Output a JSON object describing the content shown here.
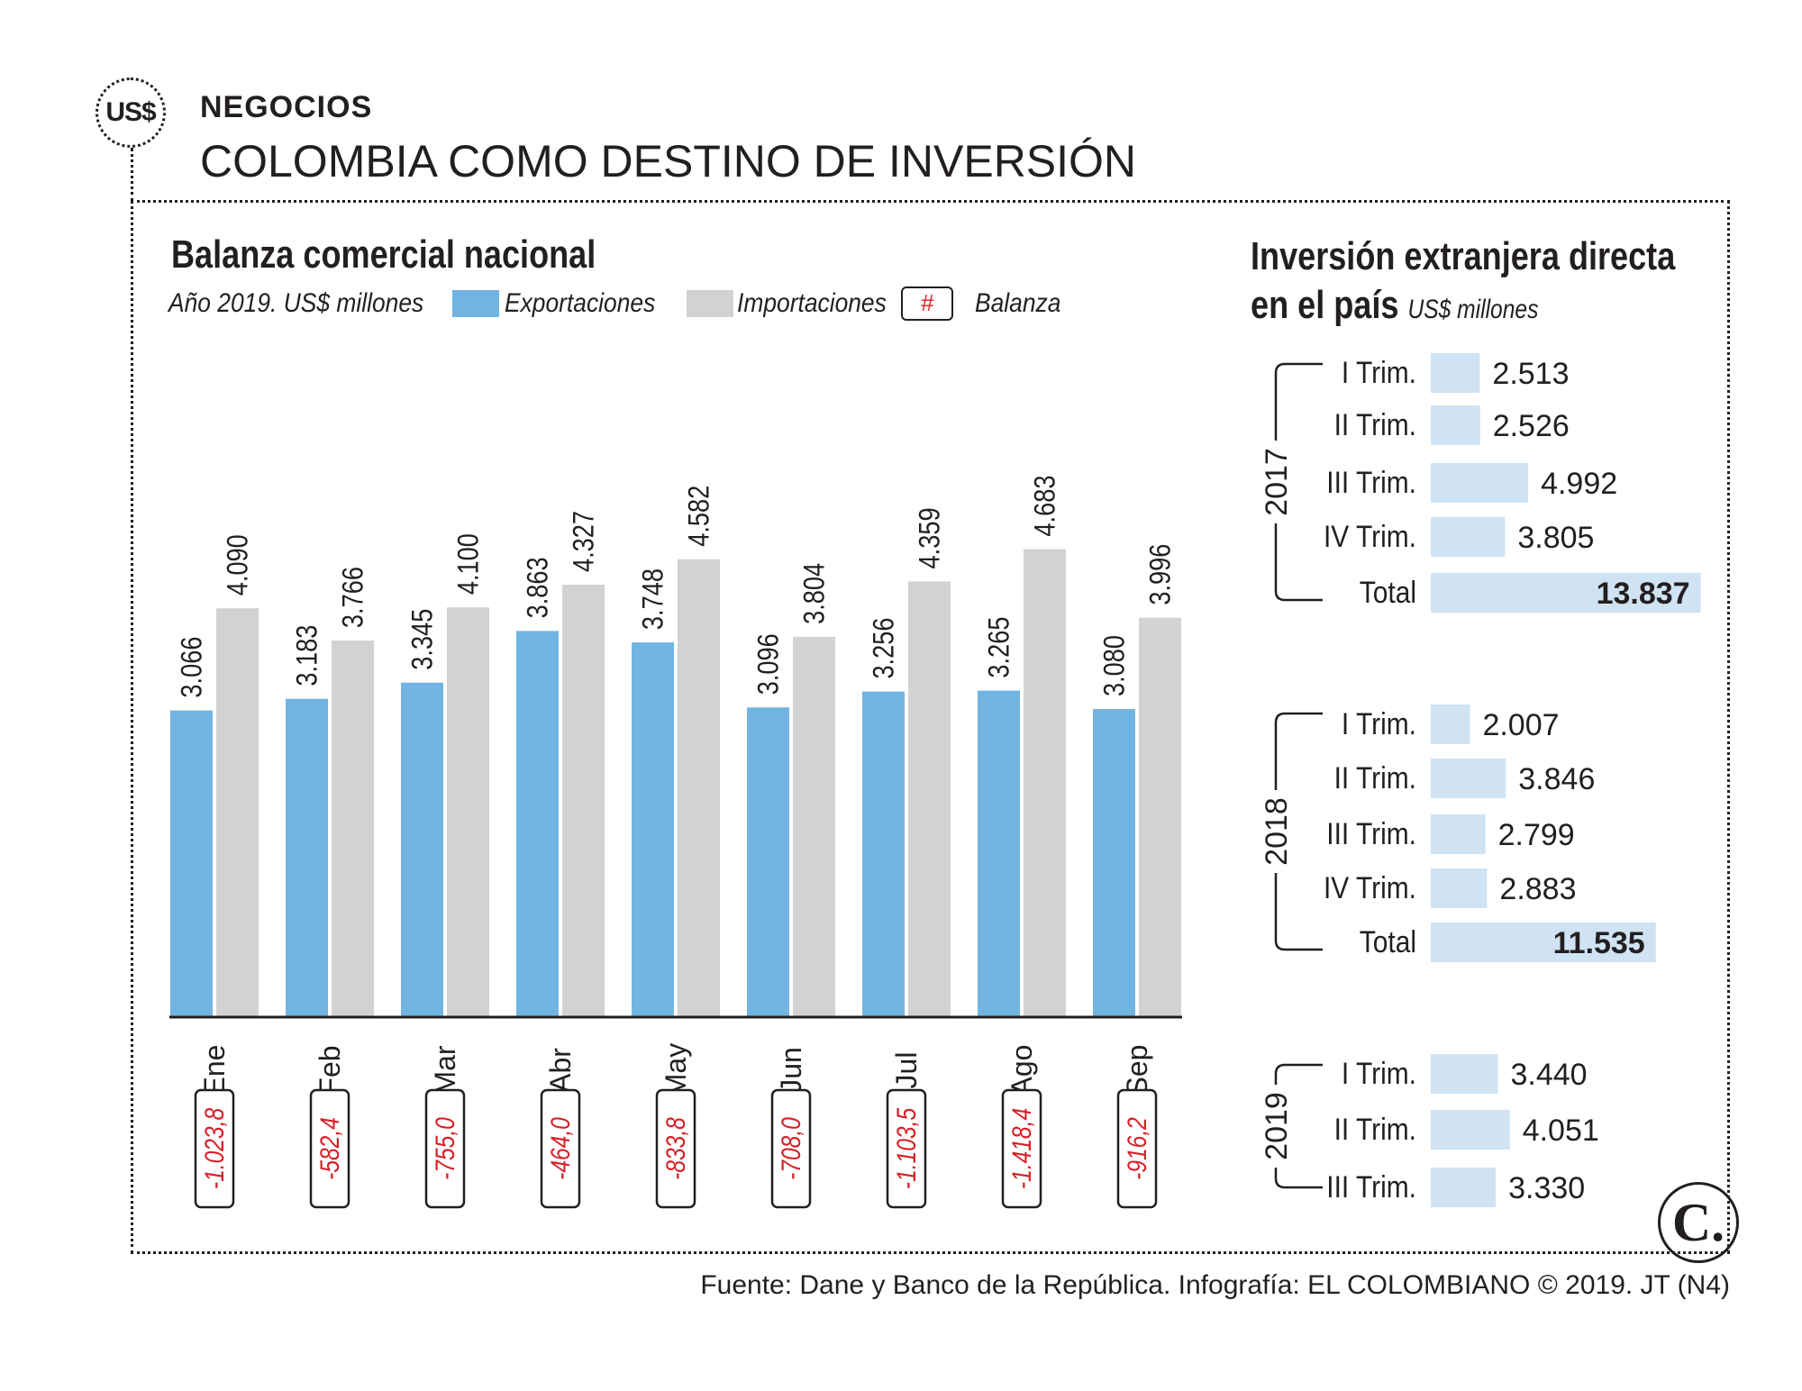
{
  "header": {
    "logo_text": "US$",
    "section": "NEGOCIOS",
    "headline": "COLOMBIA COMO DESTINO DE INVERSIÓN"
  },
  "colors": {
    "exports": "#72b4e1",
    "imports": "#d1d2d4",
    "balance_text": "#d62027",
    "ied_bar": "#cfe3f3",
    "ink": "#231f20"
  },
  "chart_data": [
    {
      "type": "bar",
      "title": "Balanza comercial nacional",
      "subtitle": "Año 2019. US$ millones",
      "legend": {
        "exports": "Exportaciones",
        "imports": "Importaciones",
        "balance_symbol": "#",
        "balance": "Balanza"
      },
      "categories": [
        "Ene",
        "Feb",
        "Mar",
        "Abr",
        "May",
        "Jun",
        "Jul",
        "Ago",
        "Sep"
      ],
      "series": [
        {
          "name": "Exportaciones",
          "values": [
            3066,
            3183,
            3345,
            3863,
            3748,
            3096,
            3256,
            3265,
            3080
          ],
          "labels": [
            "3.066",
            "3.183",
            "3.345",
            "3.863",
            "3.748",
            "3.096",
            "3.256",
            "3.265",
            "3.080"
          ]
        },
        {
          "name": "Importaciones",
          "values": [
            4090,
            3766,
            4100,
            4327,
            4582,
            3804,
            4359,
            4683,
            3996
          ],
          "labels": [
            "4.090",
            "3.766",
            "4.100",
            "4.327",
            "4.582",
            "3.804",
            "4.359",
            "4.683",
            "3.996"
          ]
        }
      ],
      "balance": [
        "-1.023,8",
        "-582,4",
        "-755,0",
        "-464,0",
        "-833,8",
        "-708,0",
        "-1.103,5",
        "-1.418,4",
        "-916,2"
      ],
      "ylim": [
        0,
        5000
      ]
    },
    {
      "type": "bar",
      "orientation": "horizontal",
      "title": "Inversión extranjera directa en el país",
      "title_line1": "Inversión extranjera directa",
      "title_line2": "en el país",
      "unit": "US$ millones",
      "xlim": [
        0,
        14000
      ],
      "groups": [
        {
          "year": "2017",
          "rows": [
            {
              "label": "I Trim.",
              "value": 2513,
              "text": "2.513"
            },
            {
              "label": "II Trim.",
              "value": 2526,
              "text": "2.526"
            },
            {
              "label": "III  Trim.",
              "value": 4992,
              "text": "4.992"
            },
            {
              "label": "IV Trim.",
              "value": 3805,
              "text": "3.805"
            },
            {
              "label": "Total",
              "value": 13837,
              "text": "13.837",
              "total": true
            }
          ]
        },
        {
          "year": "2018",
          "rows": [
            {
              "label": "I Trim.",
              "value": 2007,
              "text": "2.007"
            },
            {
              "label": "II Trim.",
              "value": 3846,
              "text": "3.846"
            },
            {
              "label": "III  Trim.",
              "value": 2799,
              "text": "2.799"
            },
            {
              "label": "IV Trim.",
              "value": 2883,
              "text": "2.883"
            },
            {
              "label": "Total",
              "value": 11535,
              "text": "11.535",
              "total": true
            }
          ]
        },
        {
          "year": "2019",
          "rows": [
            {
              "label": "I Trim.",
              "value": 3440,
              "text": "3.440"
            },
            {
              "label": "II Trim.",
              "value": 4051,
              "text": "4.051"
            },
            {
              "label": "III  Trim.",
              "value": 3330,
              "text": "3.330"
            }
          ]
        }
      ]
    }
  ],
  "footer": "Fuente: Dane y Banco de la República. Infografía: EL COLOMBIANO © 2019. JT (N4)",
  "brand_logo": "C."
}
